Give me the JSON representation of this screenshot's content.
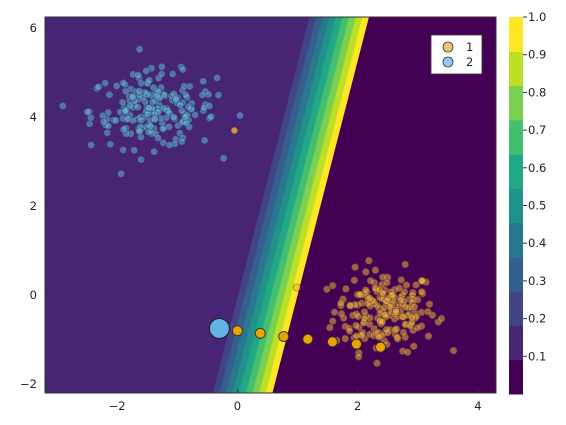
{
  "chart_data": {
    "type": "scatter",
    "title": "",
    "xlabel": "",
    "ylabel": "",
    "xlim": [
      -3.2,
      4.3
    ],
    "ylim": [
      -2.2,
      6.25
    ],
    "x_ticks": [
      -2,
      0,
      2,
      4
    ],
    "y_ticks": [
      -2,
      0,
      2,
      4,
      6
    ],
    "x_tick_labels": [
      "−2",
      "0",
      "2",
      "4"
    ],
    "y_tick_labels": [
      "−2",
      "0",
      "2",
      "4",
      "6"
    ],
    "grid": false,
    "legend_position": "top-right",
    "background_contour": {
      "description_levels": [
        0.0,
        0.1,
        0.2,
        0.3,
        0.4,
        0.5,
        0.6,
        0.7,
        0.8,
        0.9,
        1.0
      ],
      "decision_line_at_zero_y": 0.45,
      "slope": 0.19
    },
    "colorbar": {
      "min": 0,
      "max": 1.0,
      "ticks": [
        0.1,
        0.2,
        0.3,
        0.4,
        0.5,
        0.6,
        0.7,
        0.8,
        0.9,
        1.0
      ],
      "tick_labels": [
        "0.1",
        "0.2",
        "0.3",
        "0.4",
        "0.5",
        "0.6",
        "0.7",
        "0.8",
        "0.9",
        "1.0"
      ],
      "colors": [
        "#440154",
        "#482475",
        "#414487",
        "#355f8d",
        "#2a788e",
        "#21918c",
        "#22a884",
        "#44bf70",
        "#7ad151",
        "#bddf26",
        "#fde725"
      ]
    },
    "series": [
      {
        "name": "1",
        "color": "#f5a940",
        "clusters": [
          {
            "x_center": 2.45,
            "y_center": -0.35,
            "x_spread": 0.42,
            "y_spread": 0.45,
            "count": 200
          }
        ]
      },
      {
        "name": "2",
        "color": "#62b1e8",
        "clusters": [
          {
            "x_center": -1.4,
            "y_center": 4.15,
            "x_spread": 0.52,
            "y_spread": 0.42,
            "count": 200
          }
        ]
      }
    ],
    "outliers_series1": [
      {
        "x": -0.05,
        "y": 3.7
      }
    ],
    "path": {
      "color": "#e8a500",
      "points": [
        {
          "x": 0.0,
          "y": -0.8
        },
        {
          "x": 0.38,
          "y": -0.86
        },
        {
          "x": 0.77,
          "y": -0.93
        },
        {
          "x": 1.17,
          "y": -0.99
        },
        {
          "x": 1.58,
          "y": -1.05
        },
        {
          "x": 1.98,
          "y": -1.1
        },
        {
          "x": 2.38,
          "y": -1.17
        }
      ]
    },
    "highlight_point": {
      "x": -0.3,
      "y": -0.75,
      "color": "#62b1e8"
    }
  }
}
